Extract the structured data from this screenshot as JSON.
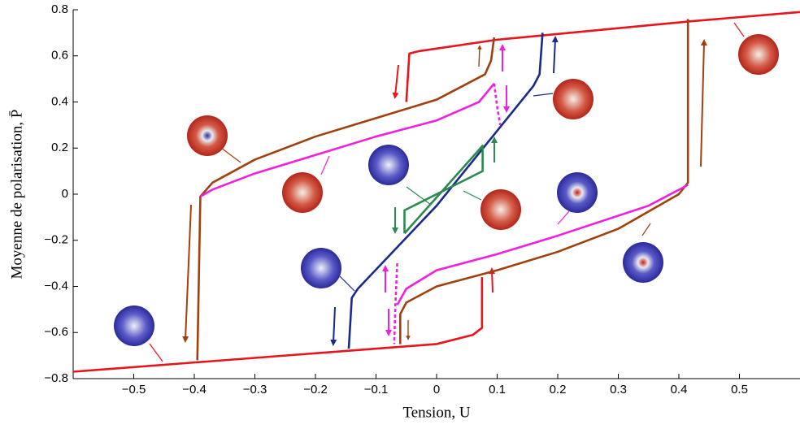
{
  "chart_data": {
    "type": "line",
    "xlabel": "Tension, U",
    "ylabel": "Moyenne de polarisation, P̄",
    "xlim": [
      -0.6,
      0.6
    ],
    "ylim": [
      -0.8,
      0.8
    ],
    "xticks": [
      {
        "value": -0.5,
        "label": "−0.5"
      },
      {
        "value": -0.4,
        "label": "−0.4"
      },
      {
        "value": -0.3,
        "label": "−0.3"
      },
      {
        "value": -0.2,
        "label": "−0.2"
      },
      {
        "value": -0.1,
        "label": "−0.1"
      },
      0,
      0.1,
      0.2,
      0.3,
      0.4,
      0.5
    ],
    "yticks": [
      {
        "value": -0.8,
        "label": "−0.8"
      },
      {
        "value": -0.6,
        "label": "−0.6"
      },
      {
        "value": -0.4,
        "label": "−0.4"
      },
      {
        "value": -0.2,
        "label": "−0.2"
      },
      0,
      0.2,
      0.4,
      0.6,
      0.8
    ],
    "series": [
      {
        "color": "#e8141c",
        "x": [
          -0.05,
          -0.045,
          -0.03,
          0.1,
          0.3,
          0.42,
          0.6
        ],
        "values": [
          0.4,
          0.61,
          0.62,
          0.67,
          0.72,
          0.75,
          0.79
        ]
      },
      {
        "color": "#e8141c",
        "x": [
          -0.6,
          -0.4,
          -0.2,
          0,
          0.06,
          0.075,
          0.075
        ],
        "values": [
          -0.77,
          -0.73,
          -0.69,
          -0.65,
          -0.61,
          -0.58,
          -0.36
        ]
      },
      {
        "color": "#a0400c",
        "x": [
          -0.395,
          -0.39,
          -0.37,
          -0.3,
          -0.2,
          -0.1,
          0,
          0.08,
          0.09,
          0.095
        ],
        "values": [
          -0.72,
          -0.01,
          0.05,
          0.15,
          0.25,
          0.33,
          0.41,
          0.52,
          0.58,
          0.68
        ]
      },
      {
        "color": "#a0400c",
        "x": [
          0.415,
          0.415,
          0.4,
          0.3,
          0.2,
          0.1,
          0,
          -0.05,
          -0.06,
          -0.06
        ],
        "values": [
          0.76,
          0.05,
          0.0,
          -0.15,
          -0.25,
          -0.33,
          -0.4,
          -0.47,
          -0.52,
          -0.65
        ]
      },
      {
        "color": "#f020e0",
        "x": [
          -0.39,
          -0.37,
          -0.3,
          -0.2,
          -0.1,
          0,
          0.07,
          0.095
        ],
        "values": [
          -0.01,
          0.02,
          0.09,
          0.17,
          0.25,
          0.32,
          0.4,
          0.48
        ]
      },
      {
        "color": "#f020e0",
        "x": [
          0.415,
          0.35,
          0.2,
          0.1,
          0,
          -0.05,
          -0.065
        ],
        "values": [
          0.04,
          -0.05,
          -0.18,
          -0.26,
          -0.33,
          -0.41,
          -0.48
        ]
      },
      {
        "color": "#f020e0",
        "dash": true,
        "x": [
          0.095,
          0.1,
          0.105
        ],
        "values": [
          0.48,
          0.38,
          0.3
        ]
      },
      {
        "color": "#f020e0",
        "dash": true,
        "x": [
          -0.065,
          -0.068,
          -0.07
        ],
        "values": [
          -0.3,
          -0.48,
          -0.65
        ]
      },
      {
        "color": "#1a2a8c",
        "x": [
          -0.145,
          -0.14,
          -0.13,
          0,
          0.16,
          0.17,
          0.175
        ],
        "values": [
          -0.67,
          -0.45,
          -0.41,
          -0.05,
          0.47,
          0.52,
          0.7
        ]
      },
      {
        "color": "#2a8a50",
        "x": [
          -0.053,
          0.076,
          0.076,
          -0.053,
          -0.053
        ],
        "values": [
          -0.17,
          0.21,
          0.1,
          -0.07,
          -0.17
        ]
      }
    ]
  }
}
